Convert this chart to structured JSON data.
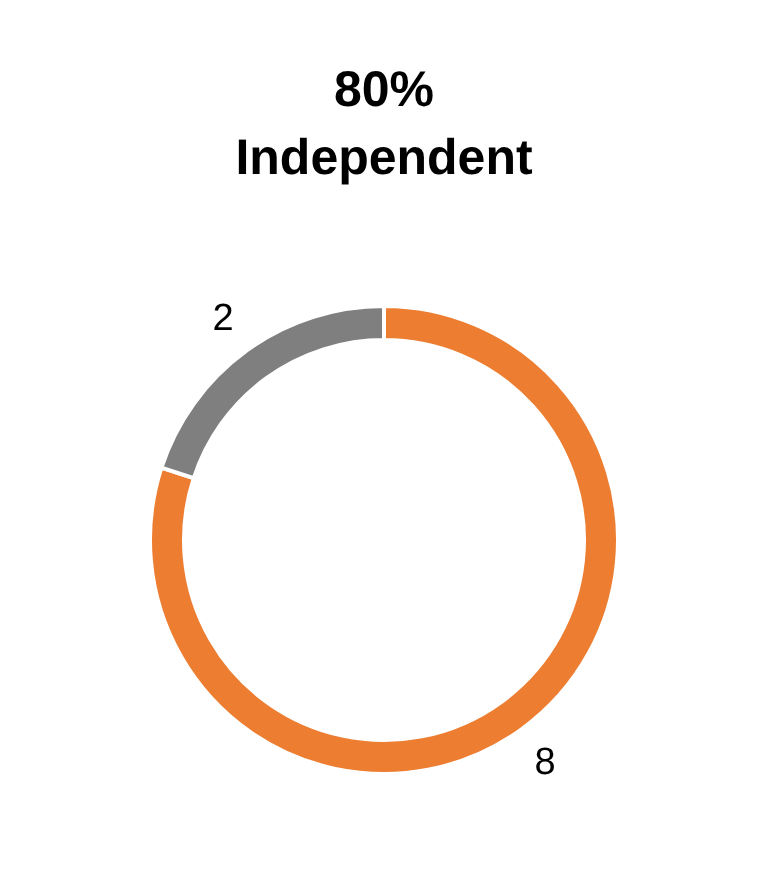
{
  "chart_data": {
    "type": "donut",
    "title": "80%\nIndependent",
    "categories": [
      null,
      null
    ],
    "values": [
      8,
      2
    ],
    "colors": [
      "#ed7d31",
      "#7f7f7f"
    ],
    "data_labels": true,
    "legend": false
  }
}
